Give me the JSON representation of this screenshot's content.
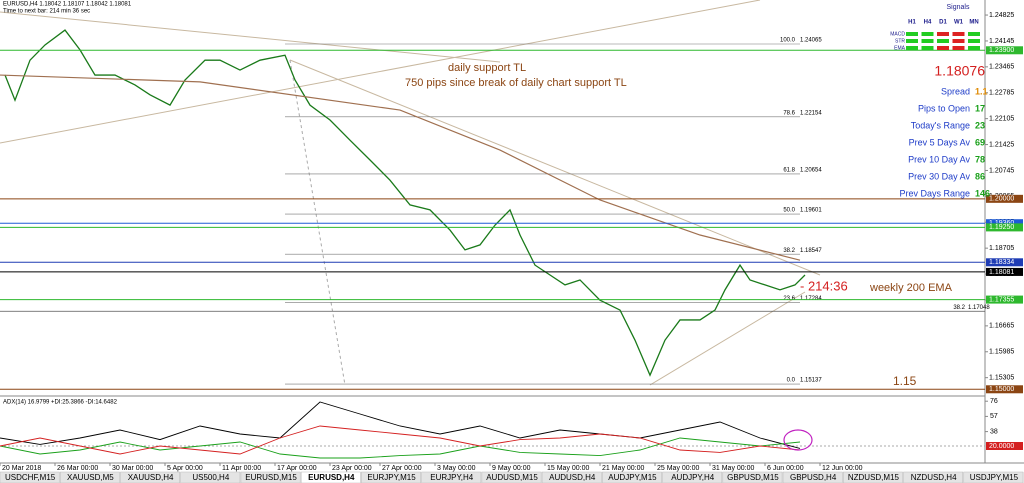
{
  "header": {
    "symbol_line": "EURUSD,H4  1.18042 1.18107 1.18042 1.18081",
    "timer": "Time to next bar: 214 min 36 sec"
  },
  "chart_data": {
    "type": "line",
    "xlim": [
      0,
      197
    ],
    "ylim": [
      1.1485,
      1.2522
    ],
    "yticks": [
      1.24825,
      1.24145,
      1.23465,
      1.22785,
      1.22105,
      1.21425,
      1.20745,
      1.20065,
      1.19385,
      1.18705,
      1.18025,
      1.17345,
      1.16665,
      1.15985,
      1.15305
    ],
    "xticks": [
      {
        "value": 0,
        "label": "20 Mar 2018"
      },
      {
        "value": 11,
        "label": "26 Mar 00:00"
      },
      {
        "value": 22,
        "label": "30 Mar 00:00"
      },
      {
        "value": 33,
        "label": "5 Apr 00:00"
      },
      {
        "value": 44,
        "label": "11 Apr 00:00"
      },
      {
        "value": 55,
        "label": "17 Apr 00:00"
      },
      {
        "value": 66,
        "label": "23 Apr 00:00"
      },
      {
        "value": 76,
        "label": "27 Apr 00:00"
      },
      {
        "value": 87,
        "label": "3 May 00:00"
      },
      {
        "value": 98,
        "label": "9 May 00:00"
      },
      {
        "value": 109,
        "label": "15 May 00:00"
      },
      {
        "value": 120,
        "label": "21 May 00:00"
      },
      {
        "value": 131,
        "label": "25 May 00:00"
      },
      {
        "value": 142,
        "label": "31 May 00:00"
      },
      {
        "value": 153,
        "label": "6 Jun 00:00"
      },
      {
        "value": 164,
        "label": "12 Jun 00:00"
      }
    ],
    "series": [
      {
        "name": "EURUSD",
        "color": "#1a7a1a",
        "x": [
          1,
          3,
          6,
          9,
          13,
          16,
          19,
          23,
          27,
          30,
          34,
          37,
          41,
          44,
          48,
          52,
          57,
          59,
          62,
          66,
          70,
          74,
          78,
          82,
          86,
          90,
          93,
          96,
          99,
          102,
          104,
          107,
          110,
          113,
          116,
          120,
          124,
          127,
          130,
          133,
          136,
          140,
          143,
          145,
          148,
          150,
          153,
          156,
          159,
          161
        ],
        "values": [
          1.2325,
          1.2259,
          1.2364,
          1.2404,
          1.2443,
          1.2391,
          1.2325,
          1.2325,
          1.2299,
          1.2273,
          1.2246,
          1.2312,
          1.2364,
          1.2364,
          1.2338,
          1.2364,
          1.2377,
          1.2312,
          1.2246,
          1.2207,
          1.2154,
          1.2102,
          1.2049,
          1.1984,
          1.1971,
          1.1918,
          1.1866,
          1.1879,
          1.1931,
          1.1971,
          1.1905,
          1.1826,
          1.18,
          1.1774,
          1.1787,
          1.1734,
          1.1708,
          1.1629,
          1.1537,
          1.1629,
          1.1682,
          1.1682,
          1.1708,
          1.1761,
          1.1826,
          1.1787,
          1.1774,
          1.1761,
          1.1774,
          1.18
        ]
      },
      {
        "name": "weekly 200 EMA",
        "color": "#a07050",
        "x": [
          0,
          40,
          80,
          100,
          120,
          140,
          160
        ],
        "values": [
          1.2325,
          1.2307,
          1.2233,
          1.2128,
          1.1997,
          1.1905,
          1.1839
        ]
      }
    ],
    "levels": [
      {
        "value": 1.239,
        "label": "1.23900",
        "color": "#2eb82e"
      },
      {
        "value": 1.2,
        "label": "1.20000",
        "color": "#8b4513"
      },
      {
        "value": 1.1936,
        "label": "1.19360",
        "color": "#1e5bd6"
      },
      {
        "value": 1.1925,
        "label": "1.19250",
        "color": "#2eb82e"
      },
      {
        "value": 1.18334,
        "label": "1.18334",
        "color": "#1e3cb4"
      },
      {
        "value": 1.18081,
        "label": "1.18081",
        "color": "#000000"
      },
      {
        "value": 1.17355,
        "label": "1.17355",
        "color": "#2eb82e"
      },
      {
        "value": 1.15,
        "label": "1.15000",
        "color": "#8b4513"
      }
    ],
    "fib": [
      {
        "level": "100.0",
        "price": 1.24065
      },
      {
        "level": "78.6",
        "price": 1.22154
      },
      {
        "level": "61.8",
        "price": 1.20654
      },
      {
        "level": "50.0",
        "price": 1.19601
      },
      {
        "level": "38.2",
        "price": 1.18547
      },
      {
        "level": "23.6",
        "price": 1.17284
      },
      {
        "level": "0.0",
        "price": 1.15137
      }
    ],
    "fib_extra": {
      "level": "38.2",
      "price": 1.17048
    },
    "annotations": [
      "daily support TL",
      "750 pips since break of daily chart support TL",
      "- 214:36",
      "weekly 200 EMA",
      "1.15"
    ]
  },
  "adx": {
    "title": "ADX(14) 16.9799 +DI:25.3866 -DI:14.6482",
    "ylim": [
      0,
      80
    ],
    "yticks": [
      76,
      57,
      38
    ],
    "level": {
      "value": 20,
      "label": "20.0000"
    },
    "x": [
      0,
      8,
      16,
      24,
      32,
      40,
      48,
      56,
      64,
      72,
      80,
      88,
      96,
      104,
      112,
      120,
      128,
      136,
      144,
      152,
      160
    ],
    "series": [
      {
        "name": "ADX",
        "color": "#000000",
        "values": [
          30,
          22,
          30,
          40,
          28,
          45,
          35,
          30,
          75,
          60,
          45,
          35,
          45,
          30,
          40,
          35,
          30,
          40,
          50,
          30,
          17
        ]
      },
      {
        "name": "+DI",
        "color": "#1aa01a",
        "values": [
          20,
          10,
          15,
          25,
          15,
          20,
          25,
          10,
          5,
          5,
          8,
          10,
          20,
          12,
          10,
          8,
          15,
          30,
          25,
          20,
          25
        ]
      },
      {
        "name": "-DI",
        "color": "#d42020",
        "values": [
          20,
          30,
          20,
          10,
          20,
          15,
          10,
          30,
          45,
          40,
          35,
          30,
          20,
          28,
          30,
          35,
          30,
          15,
          12,
          20,
          15
        ]
      }
    ]
  },
  "signals": {
    "title": "Signals",
    "columns": [
      "H1",
      "H4",
      "D1",
      "W1",
      "MN"
    ],
    "rows": [
      {
        "name": "MACD",
        "colors": [
          "#22cc22",
          "#22cc22",
          "#dd2222",
          "#dd2222",
          "#22cc22"
        ]
      },
      {
        "name": "STR",
        "colors": [
          "#22cc22",
          "#22cc22",
          "#22cc22",
          "#dd2222",
          "#22cc22"
        ]
      },
      {
        "name": "EMA",
        "colors": [
          "#22cc22",
          "#22cc22",
          "#dd2222",
          "#dd2222",
          "#22cc22"
        ]
      }
    ]
  },
  "info": {
    "price": "1.18076",
    "rows": [
      {
        "label": "Spread",
        "value": "1.1",
        "value_color": "#e08a00"
      },
      {
        "label": "Pips to Open",
        "value": "17",
        "value_color": "#1aa01a"
      },
      {
        "label": "Today's Range",
        "value": "23",
        "value_color": "#1aa01a"
      },
      {
        "label": "Prev 5 Days Av",
        "value": "69",
        "value_color": "#1aa01a"
      },
      {
        "label": "Prev 10 Day Av",
        "value": "78",
        "value_color": "#1aa01a"
      },
      {
        "label": "Prev 30 Day Av",
        "value": "86",
        "value_color": "#1aa01a"
      },
      {
        "label": "Prev Days Range",
        "value": "146",
        "value_color": "#1aa01a"
      }
    ]
  },
  "tabs": {
    "active": 5,
    "items": [
      "USDCHF,M15",
      "XAUUSD,M5",
      "XAUUSD,H4",
      "US500,H4",
      "EURUSD,M15",
      "EURUSD,H4",
      "EURJPY,M15",
      "EURJPY,H4",
      "AUDUSD,M15",
      "AUDUSD,H4",
      "AUDJPY,M15",
      "AUDJPY,H4",
      "GBPUSD,M15",
      "GBPUSD,H4",
      "NZDUSD,M15",
      "NZDUSD,H4",
      "USDJPY,M15"
    ]
  }
}
